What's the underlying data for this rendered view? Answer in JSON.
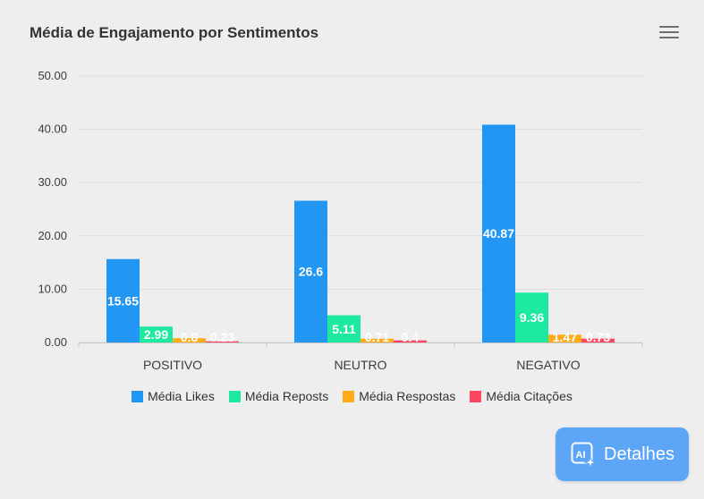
{
  "chart_data": {
    "type": "bar",
    "title": "Média de Engajamento por Sentimentos",
    "categories": [
      "POSITIVO",
      "NEUTRO",
      "NEGATIVO"
    ],
    "series": [
      {
        "name": "Média Likes",
        "color": "#2196f3",
        "values": [
          15.65,
          26.6,
          40.87
        ]
      },
      {
        "name": "Média Reposts",
        "color": "#1de9a0",
        "values": [
          2.99,
          5.11,
          9.36
        ]
      },
      {
        "name": "Média Respostas",
        "color": "#ffab1a",
        "values": [
          0.8,
          0.71,
          1.47
        ]
      },
      {
        "name": "Média Citações",
        "color": "#ff4560",
        "values": [
          0.23,
          0.4,
          0.73
        ]
      }
    ],
    "ylim": [
      0,
      50
    ],
    "yticks": [
      "0.00",
      "10.00",
      "20.00",
      "30.00",
      "40.00",
      "50.00"
    ],
    "grid": true,
    "legend_position": "bottom"
  },
  "toolbar": {
    "menu_icon": "hamburger-menu-icon"
  },
  "ai_button": {
    "label": "Detalhes",
    "icon": "ai-sparkle-icon",
    "color": "#5da5f7"
  }
}
